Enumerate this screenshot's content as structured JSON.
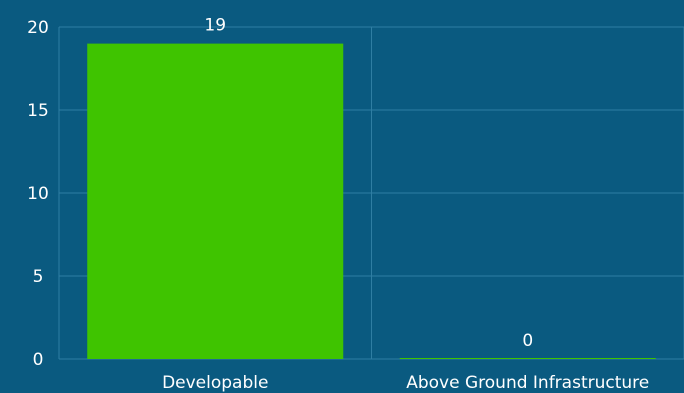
{
  "chart_data": {
    "type": "bar",
    "categories": [
      "Developable",
      "Above Ground Infrastructure"
    ],
    "values": [
      19,
      0
    ],
    "data_labels": [
      "19",
      "0"
    ],
    "ylim": [
      0,
      20
    ],
    "yticks": [
      "0",
      "5",
      "10",
      "15",
      "20"
    ],
    "ytick_values": [
      0,
      5,
      10,
      15,
      20
    ],
    "grid": true,
    "colors": {
      "background": "#0a5a80",
      "bar": "#3fc400",
      "grid": "#2f7ea3",
      "text": "#ffffff"
    }
  }
}
